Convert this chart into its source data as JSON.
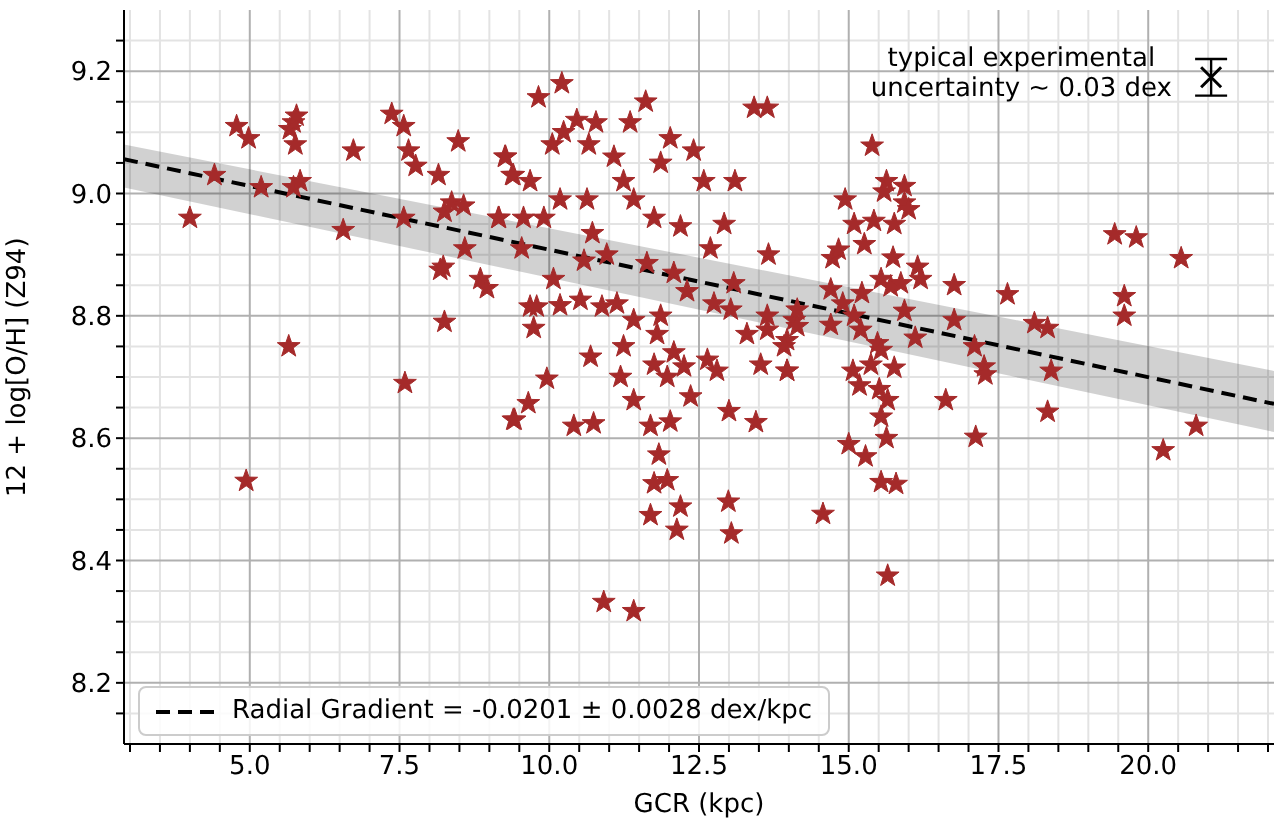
{
  "chart_data": {
    "type": "scatter",
    "xlabel": "GCR (kpc)",
    "ylabel": "12 + log[O/H] (Z94)",
    "annotations": [
      "typical experimental\nuncertainty ~ 0.03 dex"
    ],
    "xlim": [
      2.9,
      22.1
    ],
    "xticks": [
      {
        "value": 3,
        "label": null
      },
      {
        "value": 3.5,
        "label": null
      },
      {
        "value": 4,
        "label": null
      },
      {
        "value": 4.5,
        "label": null
      },
      {
        "value": 5,
        "label": "5.0"
      },
      {
        "value": 5.5,
        "label": null
      },
      {
        "value": 6,
        "label": null
      },
      {
        "value": 6.5,
        "label": null
      },
      {
        "value": 7,
        "label": null
      },
      7.5,
      {
        "value": 8,
        "label": null
      },
      {
        "value": 8.5,
        "label": null
      },
      {
        "value": 9,
        "label": null
      },
      {
        "value": 9.5,
        "label": null
      },
      {
        "value": 10,
        "label": "10.0"
      },
      {
        "value": 10.5,
        "label": null
      },
      {
        "value": 11,
        "label": null
      },
      {
        "value": 11.5,
        "label": null
      },
      {
        "value": 12,
        "label": null
      },
      12.5,
      {
        "value": 13,
        "label": null
      },
      {
        "value": 13.5,
        "label": null
      },
      {
        "value": 14,
        "label": null
      },
      {
        "value": 14.5,
        "label": null
      },
      {
        "value": 15,
        "label": "15.0"
      },
      {
        "value": 15.5,
        "label": null
      },
      {
        "value": 16,
        "label": null
      },
      {
        "value": 16.5,
        "label": null
      },
      {
        "value": 17,
        "label": null
      },
      17.5,
      {
        "value": 18,
        "label": null
      },
      {
        "value": 18.5,
        "label": null
      },
      {
        "value": 19,
        "label": null
      },
      {
        "value": 19.5,
        "label": null
      },
      {
        "value": 20,
        "label": "20.0"
      },
      {
        "value": 20.5,
        "label": null
      },
      {
        "value": 21,
        "label": null
      },
      {
        "value": 21.5,
        "label": null
      },
      {
        "value": 22,
        "label": null
      }
    ],
    "ylim": [
      8.1,
      9.3
    ],
    "yticks": [
      {
        "value": 8.15,
        "label": null
      },
      8.2,
      {
        "value": 8.25,
        "label": null
      },
      {
        "value": 8.3,
        "label": null
      },
      {
        "value": 8.35,
        "label": null
      },
      8.4,
      {
        "value": 8.45,
        "label": null
      },
      {
        "value": 8.5,
        "label": null
      },
      {
        "value": 8.55,
        "label": null
      },
      8.6,
      {
        "value": 8.65,
        "label": null
      },
      {
        "value": 8.7,
        "label": null
      },
      {
        "value": 8.75,
        "label": null
      },
      8.8,
      {
        "value": 8.85,
        "label": null
      },
      {
        "value": 8.9,
        "label": null
      },
      {
        "value": 8.95,
        "label": null
      },
      {
        "value": 9,
        "label": "9.0"
      },
      {
        "value": 9.05,
        "label": null
      },
      {
        "value": 9.1,
        "label": null
      },
      {
        "value": 9.15,
        "label": null
      },
      9.2,
      {
        "value": 9.25,
        "label": null
      }
    ],
    "grid": true,
    "legend": "bottom left",
    "series": [
      {
        "color": "#a52a2a",
        "marker": "star",
        "x": [
          4.0,
          4.78,
          4.98,
          4.41,
          5.19,
          5.67,
          5.73,
          5.78,
          5.76,
          5.73,
          5.84,
          6.56,
          6.73,
          7.37,
          7.57,
          7.65,
          7.77,
          7.57,
          5.65,
          7.59,
          4.94,
          8.15,
          8.48,
          8.25,
          8.37,
          8.57,
          8.59,
          8.18,
          8.23,
          8.85,
          8.96,
          8.25,
          9.15,
          9.26,
          9.4,
          9.4,
          9.82,
          10.21,
          11.61,
          13.42,
          13.64,
          9.27,
          9.38,
          9.68,
          10.05,
          10.24,
          10.46,
          10.78,
          10.66,
          11.35,
          11.08,
          12.02,
          12.41,
          11.86,
          12.58,
          13.1,
          11.24,
          10.63,
          11.41,
          10.18,
          9.16,
          9.57,
          9.91,
          11.75,
          12.92,
          12.19,
          12.69,
          13.66,
          9.54,
          10.72,
          10.96,
          10.58,
          10.07,
          11.63,
          12.08,
          12.3,
          13.08,
          9.68,
          9.79,
          9.74,
          10.18,
          10.52,
          10.88,
          11.13,
          11.41,
          11.86,
          12.75,
          13.03,
          13.3,
          13.64,
          14.09,
          11.8,
          11.24,
          10.69,
          11.75,
          12.08,
          12.25,
          11.97,
          12.64,
          12.8,
          13.53,
          13.97,
          11.19,
          9.96,
          11.41,
          12.36,
          9.65,
          9.42,
          10.41,
          10.74,
          11.69,
          12.02,
          13.0,
          13.45,
          11.83,
          11.75,
          11.97,
          12.19,
          11.69,
          12.13,
          12.99,
          13.04,
          10.91,
          11.41,
          15.39,
          15.63,
          15.93,
          15.59,
          14.94,
          15.93,
          16.0,
          15.09,
          15.42,
          15.76,
          15.26,
          14.73,
          14.83,
          15.74,
          16.15,
          16.2,
          16.76,
          15.54,
          15.7,
          15.87,
          14.7,
          15.22,
          14.9,
          15.93,
          17.65,
          19.44,
          19.8,
          20.55,
          19.6,
          19.6,
          13.64,
          14.14,
          14.14,
          13.97,
          13.92,
          14.7,
          15.09,
          15.2,
          15.48,
          15.54,
          16.11,
          16.76,
          17.1,
          18.1,
          18.32,
          17.26,
          17.28,
          18.38,
          15.07,
          15.37,
          15.76,
          13.97,
          15.18,
          15.51,
          15.65,
          16.62,
          15.54,
          18.32,
          15.0,
          15.28,
          15.63,
          17.12,
          15.54,
          15.79,
          14.57,
          15.65,
          20.25,
          20.8
        ],
        "values": [
          8.96,
          9.11,
          9.09,
          9.03,
          9.01,
          9.105,
          9.116,
          9.127,
          9.08,
          9.01,
          9.02,
          8.94,
          9.07,
          9.13,
          9.11,
          9.07,
          9.045,
          8.96,
          8.75,
          8.69,
          8.53,
          9.03,
          9.085,
          8.97,
          8.985,
          8.98,
          8.91,
          8.875,
          8.88,
          8.86,
          8.845,
          8.79,
          8.96,
          9.06,
          9.03,
          8.63,
          9.157,
          9.18,
          9.15,
          9.14,
          9.14,
          9.06,
          9.03,
          9.02,
          9.08,
          9.1,
          9.12,
          9.116,
          9.08,
          9.116,
          9.06,
          9.09,
          9.07,
          9.05,
          9.02,
          9.02,
          9.02,
          8.99,
          8.99,
          8.99,
          8.96,
          8.96,
          8.96,
          8.96,
          8.95,
          8.946,
          8.91,
          8.9,
          8.91,
          8.935,
          8.9,
          8.89,
          8.86,
          8.886,
          8.87,
          8.84,
          8.853,
          8.815,
          8.815,
          8.78,
          8.817,
          8.826,
          8.815,
          8.82,
          8.793,
          8.8,
          8.82,
          8.81,
          8.77,
          8.8,
          8.793,
          8.77,
          8.75,
          8.733,
          8.72,
          8.74,
          8.717,
          8.7,
          8.728,
          8.71,
          8.72,
          8.71,
          8.7,
          8.697,
          8.662,
          8.668,
          8.657,
          8.63,
          8.62,
          8.624,
          8.62,
          8.627,
          8.644,
          8.626,
          8.573,
          8.526,
          8.531,
          8.488,
          8.474,
          8.45,
          8.496,
          8.444,
          8.332,
          8.317,
          9.078,
          9.02,
          9.012,
          9.003,
          8.99,
          8.985,
          8.974,
          8.95,
          8.955,
          8.95,
          8.917,
          8.894,
          8.908,
          8.895,
          8.88,
          8.86,
          8.85,
          8.86,
          8.848,
          8.853,
          8.843,
          8.837,
          8.82,
          8.808,
          8.835,
          8.933,
          8.928,
          8.894,
          8.832,
          8.8,
          8.777,
          8.81,
          8.783,
          8.76,
          8.75,
          8.785,
          8.8,
          8.777,
          8.755,
          8.744,
          8.764,
          8.793,
          8.75,
          8.788,
          8.78,
          8.717,
          8.704,
          8.71,
          8.71,
          8.72,
          8.715,
          8.71,
          8.686,
          8.68,
          8.662,
          8.662,
          8.635,
          8.643,
          8.59,
          8.57,
          8.6,
          8.602,
          8.528,
          8.525,
          8.476,
          8.375,
          8.58,
          8.62
        ]
      },
      {
        "type": "line",
        "name": "Radial Gradient = -0.0201 ± 0.0028 dex/kpc",
        "color": "#000000",
        "line_style": "dashed",
        "x": [
          2.9,
          22.1
        ],
        "values": [
          9.056,
          8.656
        ],
        "lower": [
          9.01,
          8.61
        ],
        "upper": [
          9.08,
          8.71
        ]
      },
      {
        "type": "scatter",
        "color": "#000000",
        "marker": "cross",
        "x": [
          21.05
        ],
        "values": [
          9.19
        ],
        "errors": [
          0.03
        ]
      }
    ]
  }
}
